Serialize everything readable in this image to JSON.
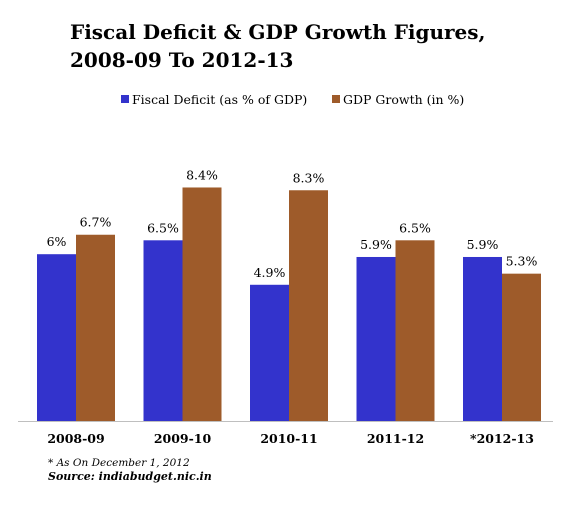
{
  "chart_data": {
    "type": "bar",
    "title_lines": [
      "Fiscal Deficit & GDP Growth Figures,",
      "2008-09 To 2012-13"
    ],
    "categories": [
      "2008-09",
      "2009-10",
      "2010-11",
      "2011-12",
      "*2012-13"
    ],
    "series": [
      {
        "name": "Fiscal Deficit (as % of GDP)",
        "color": "#3333cc",
        "values": [
          6.0,
          6.5,
          4.9,
          5.9,
          5.9
        ],
        "labels": [
          "6%",
          "6.5%",
          "4.9%",
          "5.9%",
          "5.9%"
        ]
      },
      {
        "name": "GDP Growth (in %)",
        "color": "#9e5b2a",
        "values": [
          6.7,
          8.4,
          8.3,
          6.5,
          5.3
        ],
        "labels": [
          "6.7%",
          "8.4%",
          "8.3%",
          "6.5%",
          "5.3%"
        ]
      }
    ],
    "ylim": [
      0,
      10
    ],
    "legend_position": "top",
    "grid": false
  },
  "footnote": {
    "note": "* As On December 1, 2012",
    "source": "Source: indiabudget.nic.in"
  }
}
